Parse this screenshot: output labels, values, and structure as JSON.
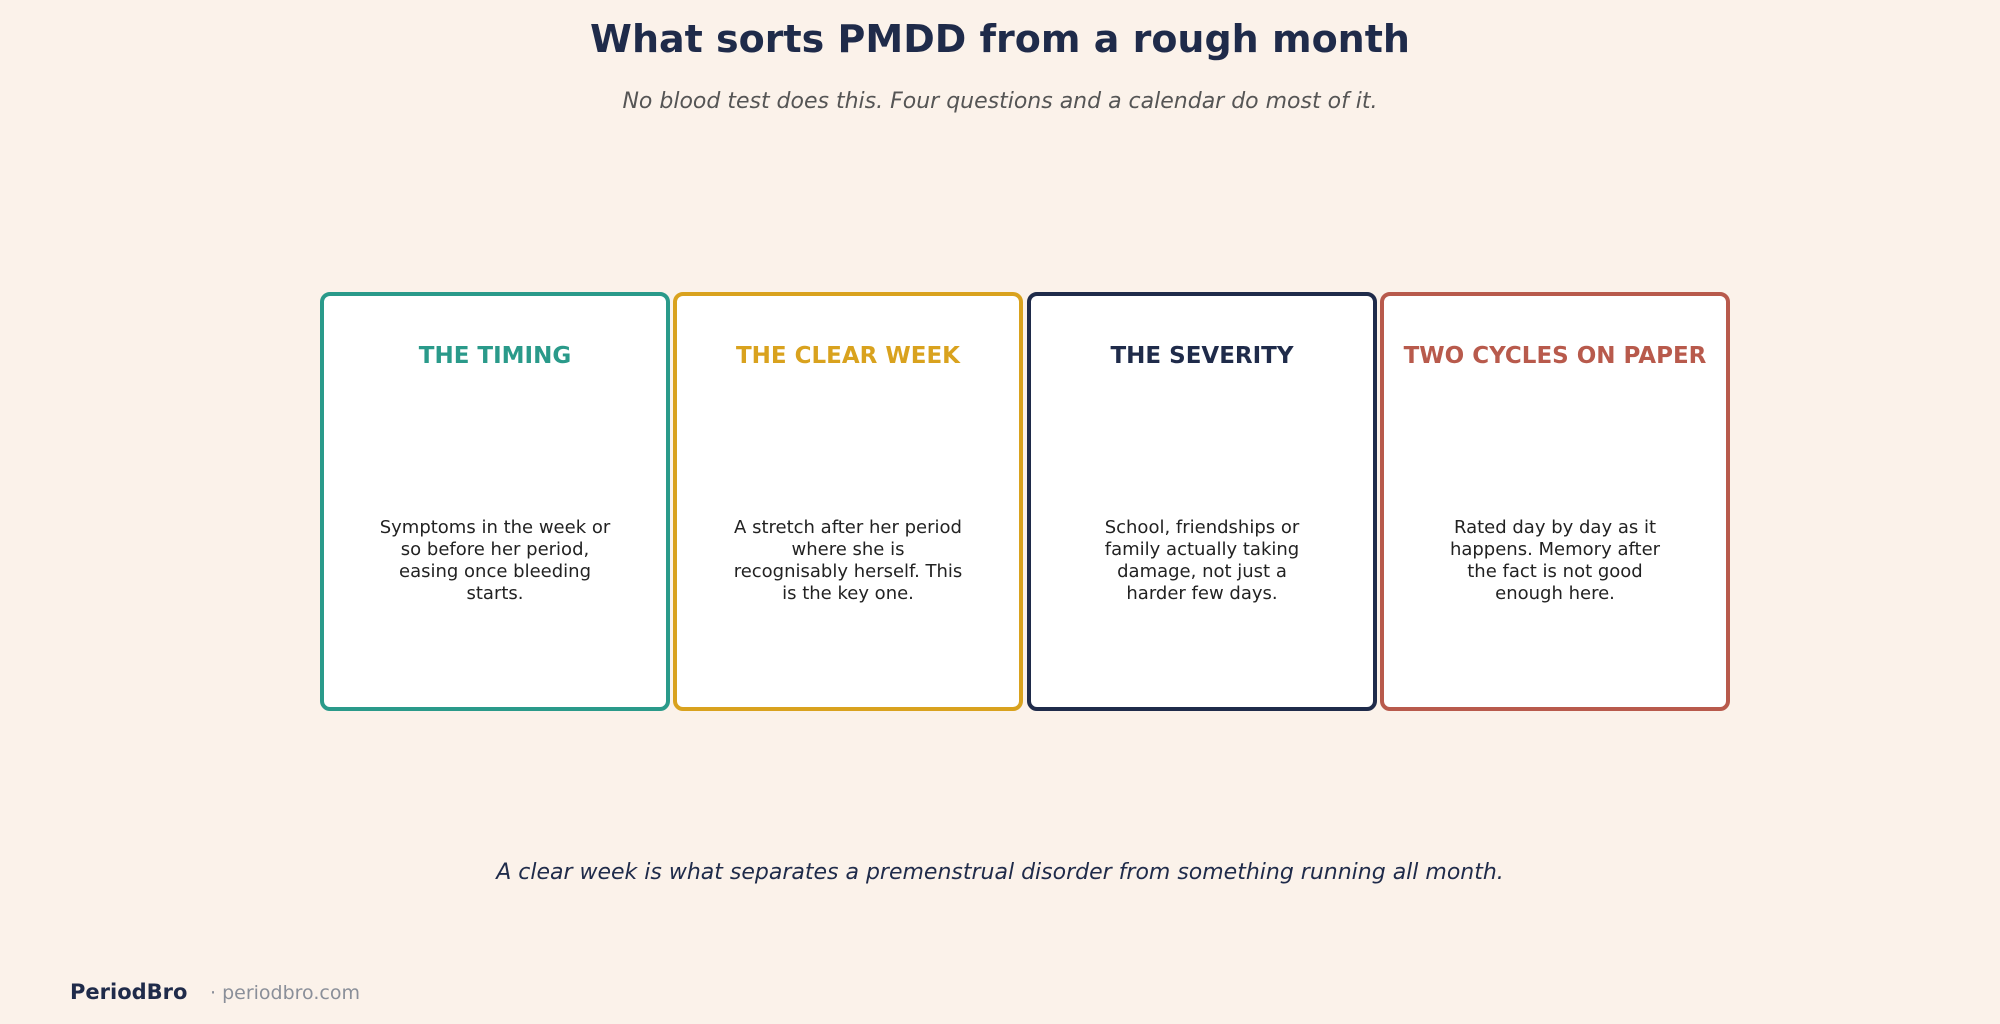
{
  "header": {
    "title": "What sorts PMDD from a rough month",
    "subtitle": "No blood test does this. Four questions and a calendar do most of it."
  },
  "cards": [
    {
      "title": "THE TIMING",
      "body": "Symptoms in the week or so before her period, easing once bleeding starts.",
      "color": "#2a9a8a"
    },
    {
      "title": "THE CLEAR WEEK",
      "body": "A stretch after her period where she is recognisably herself. This is the key one.",
      "color": "#d9a21e"
    },
    {
      "title": "THE SEVERITY",
      "body": "School, friendships or family actually taking damage, not just a harder few days.",
      "color": "#1f2b4a"
    },
    {
      "title": "TWO CYCLES ON PAPER",
      "body": "Rated day by day as it happens. Memory after the fact is not good enough here.",
      "color": "#b85a4c"
    }
  ],
  "footer": {
    "note": "A clear week is what separates a premenstrual disorder from something running all month.",
    "brand": "PeriodBro",
    "site": "· periodbro.com"
  }
}
